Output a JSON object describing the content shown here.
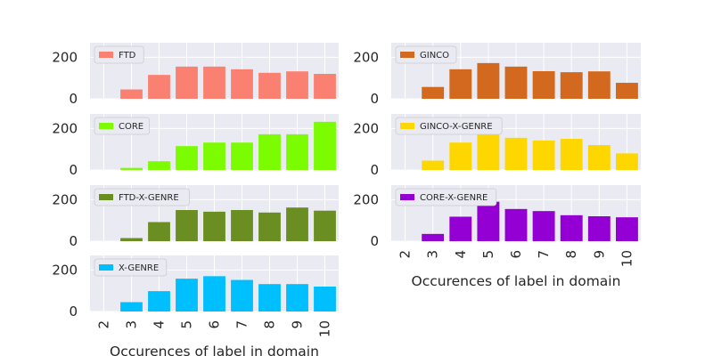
{
  "chart_data": [
    {
      "type": "bar",
      "series": [
        {
          "name": "FTD",
          "values": [
            0,
            45,
            115,
            155,
            155,
            142,
            125,
            132,
            120
          ]
        }
      ],
      "color": "#FA8072",
      "categories": [
        "2",
        "3",
        "4",
        "5",
        "6",
        "7",
        "8",
        "9",
        "10"
      ],
      "ylim": [
        0,
        270
      ],
      "yticks": [
        "0",
        "200"
      ],
      "xlabel": "",
      "show_xticklabels": false,
      "legend": "top-left",
      "grid": true
    },
    {
      "type": "bar",
      "series": [
        {
          "name": "CORE",
          "values": [
            0,
            10,
            42,
            115,
            132,
            132,
            172,
            172,
            232
          ]
        }
      ],
      "color": "#7CFC00",
      "categories": [
        "2",
        "3",
        "4",
        "5",
        "6",
        "7",
        "8",
        "9",
        "10"
      ],
      "ylim": [
        0,
        270
      ],
      "yticks": [
        "0",
        "200"
      ],
      "xlabel": "",
      "show_xticklabels": false,
      "legend": "top-left",
      "grid": true
    },
    {
      "type": "bar",
      "series": [
        {
          "name": "FTD-X-GENRE",
          "values": [
            0,
            15,
            92,
            150,
            142,
            150,
            138,
            162,
            147
          ]
        }
      ],
      "color": "#6B8E23",
      "categories": [
        "2",
        "3",
        "4",
        "5",
        "6",
        "7",
        "8",
        "9",
        "10"
      ],
      "ylim": [
        0,
        270
      ],
      "yticks": [
        "0",
        "200"
      ],
      "xlabel": "",
      "show_xticklabels": false,
      "legend": "top-left",
      "grid": true
    },
    {
      "type": "bar",
      "series": [
        {
          "name": "X-GENRE",
          "values": [
            0,
            45,
            98,
            158,
            170,
            152,
            132,
            132,
            120
          ]
        }
      ],
      "color": "#00BFFF",
      "categories": [
        "2",
        "3",
        "4",
        "5",
        "6",
        "7",
        "8",
        "9",
        "10"
      ],
      "ylim": [
        0,
        270
      ],
      "yticks": [
        "0",
        "200"
      ],
      "xlabel": "Occurences of label in domain",
      "show_xticklabels": true,
      "legend": "top-left",
      "grid": true
    },
    {
      "type": "bar",
      "series": [
        {
          "name": "GINCO",
          "values": [
            0,
            57,
            142,
            172,
            155,
            133,
            128,
            132,
            77
          ]
        }
      ],
      "color": "#D2691E",
      "categories": [
        "2",
        "3",
        "4",
        "5",
        "6",
        "7",
        "8",
        "9",
        "10"
      ],
      "ylim": [
        0,
        270
      ],
      "yticks": [
        "0",
        "200"
      ],
      "xlabel": "",
      "show_xticklabels": false,
      "legend": "top-left",
      "grid": true
    },
    {
      "type": "bar",
      "series": [
        {
          "name": "GINCO-X-GENRE",
          "values": [
            0,
            45,
            132,
            182,
            155,
            142,
            150,
            120,
            80
          ]
        }
      ],
      "color": "#FFD700",
      "categories": [
        "2",
        "3",
        "4",
        "5",
        "6",
        "7",
        "8",
        "9",
        "10"
      ],
      "ylim": [
        0,
        270
      ],
      "yticks": [
        "0",
        "200"
      ],
      "xlabel": "",
      "show_xticklabels": false,
      "legend": "top-left",
      "grid": true
    },
    {
      "type": "bar",
      "series": [
        {
          "name": "CORE-X-GENRE",
          "values": [
            0,
            35,
            118,
            190,
            155,
            145,
            125,
            120,
            115
          ]
        }
      ],
      "color": "#9400D3",
      "categories": [
        "2",
        "3",
        "4",
        "5",
        "6",
        "7",
        "8",
        "9",
        "10"
      ],
      "ylim": [
        0,
        270
      ],
      "yticks": [
        "0",
        "200"
      ],
      "xlabel": "Occurences of label in domain",
      "show_xticklabels": true,
      "legend": "top-left",
      "grid": true
    }
  ],
  "style": {
    "panel_background": "#EAEAF2",
    "grid_color": "#FFFFFF",
    "text_color": "#262626",
    "legend_background": "#EAEAF2",
    "legend_border": "#CCCCCC"
  }
}
